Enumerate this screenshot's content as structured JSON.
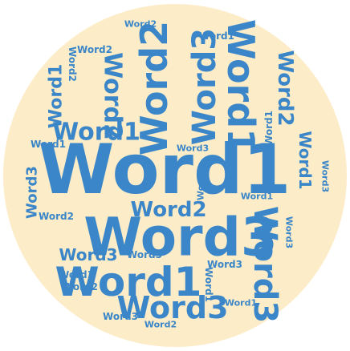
{
  "colors": {
    "background": "#ffffff",
    "disc": "#fdecc8",
    "word": "#3a86c8"
  },
  "cloud": {
    "shape": "circle",
    "words": [
      {
        "text": "Word1",
        "weight": 5,
        "rotate": 0
      },
      {
        "text": "Word3",
        "weight": 4,
        "rotate": 0
      },
      {
        "text": "Word3",
        "weight": 4,
        "rotate": 90
      },
      {
        "text": "Word1",
        "weight": 4,
        "rotate": 0
      },
      {
        "text": "Word3",
        "weight": 3,
        "rotate": 0
      },
      {
        "text": "Word2",
        "weight": 3,
        "rotate": -90
      },
      {
        "text": "Word3",
        "weight": 3,
        "rotate": -90
      },
      {
        "text": "Word1",
        "weight": 3,
        "rotate": 90
      },
      {
        "text": "Word2",
        "weight": 2,
        "rotate": 90
      },
      {
        "text": "Word1",
        "weight": 2,
        "rotate": 0
      },
      {
        "text": "Word2",
        "weight": 2,
        "rotate": 0
      },
      {
        "text": "Word2",
        "weight": 2,
        "rotate": 90
      },
      {
        "text": "Word1",
        "weight": 2,
        "rotate": -90
      },
      {
        "text": "Word3",
        "weight": 2,
        "rotate": 0
      },
      {
        "text": "Word1",
        "weight": 2,
        "rotate": 90
      },
      {
        "text": "Word3",
        "weight": 2,
        "rotate": -90
      },
      {
        "text": "Word2",
        "weight": 1,
        "rotate": 0
      },
      {
        "text": "Word1",
        "weight": 1,
        "rotate": 0
      },
      {
        "text": "Word2",
        "weight": 1,
        "rotate": 0
      },
      {
        "text": "Word3",
        "weight": 1,
        "rotate": 0
      },
      {
        "text": "Word2",
        "weight": 1,
        "rotate": 90
      },
      {
        "text": "Word1",
        "weight": 1,
        "rotate": -90
      },
      {
        "text": "Word3",
        "weight": 1,
        "rotate": 90
      },
      {
        "text": "Word1",
        "weight": 1,
        "rotate": 0
      },
      {
        "text": "Word2",
        "weight": 1,
        "rotate": 0
      },
      {
        "text": "Word3",
        "weight": 1,
        "rotate": 0
      },
      {
        "text": "Word1",
        "weight": 1,
        "rotate": 90
      },
      {
        "text": "Word2",
        "weight": 1,
        "rotate": -90
      },
      {
        "text": "Word3",
        "weight": 1,
        "rotate": 0
      },
      {
        "text": "Word1",
        "weight": 1,
        "rotate": 0
      },
      {
        "text": "Word2",
        "weight": 1,
        "rotate": 0
      },
      {
        "text": "Word3",
        "weight": 1,
        "rotate": 90
      },
      {
        "text": "Word1",
        "weight": 1,
        "rotate": 0
      },
      {
        "text": "Word2",
        "weight": 1,
        "rotate": 0
      },
      {
        "text": "Word3",
        "weight": 1,
        "rotate": 0
      },
      {
        "text": "Word1",
        "weight": 1,
        "rotate": 0
      }
    ]
  }
}
